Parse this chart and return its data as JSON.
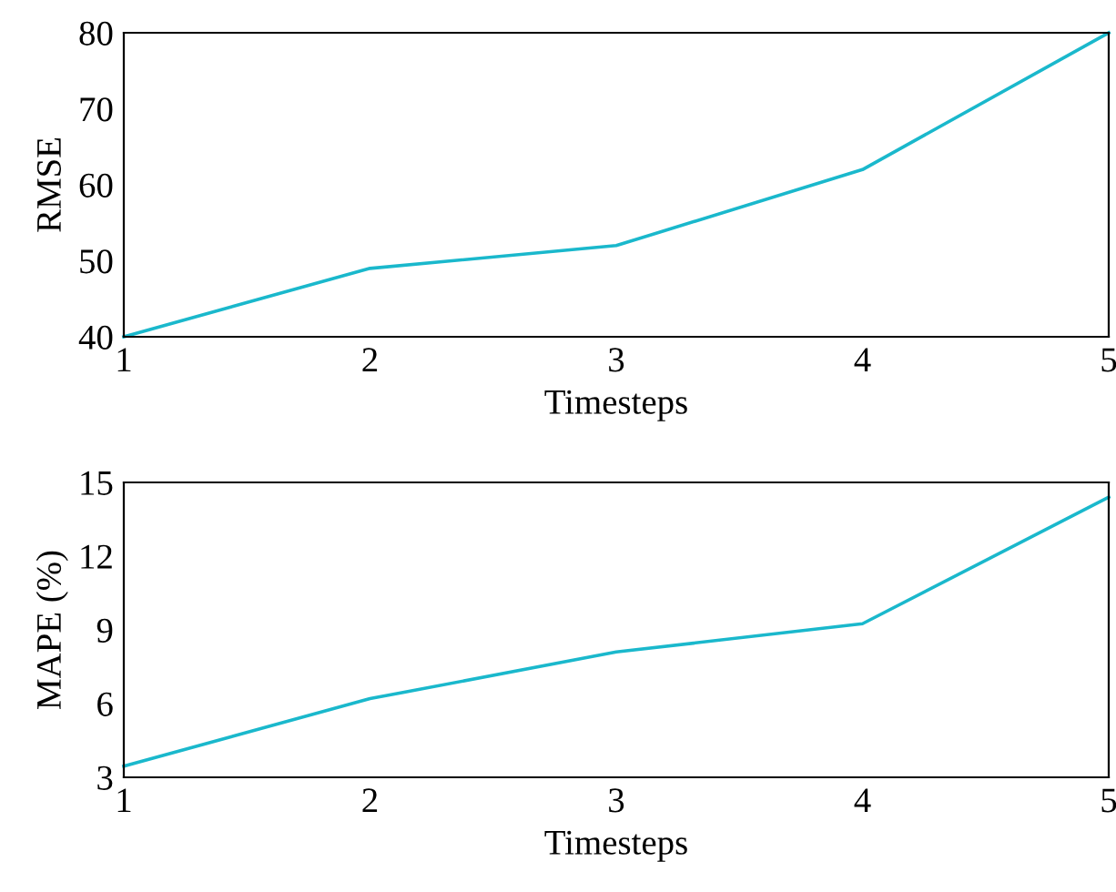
{
  "chart_data": [
    {
      "type": "line",
      "xlabel": "Timesteps",
      "ylabel": "RMSE",
      "x": [
        1,
        2,
        3,
        4,
        5
      ],
      "series": [
        {
          "color": "#1ab8cc",
          "values": [
            40,
            49,
            52,
            62,
            80
          ]
        }
      ],
      "xlim": [
        1,
        5
      ],
      "xticks": [
        1,
        2,
        3,
        4,
        5
      ],
      "ylim": [
        40,
        80
      ],
      "yticks": [
        40,
        50,
        60,
        70,
        80
      ],
      "grid": false,
      "legend": false
    },
    {
      "type": "line",
      "xlabel": "Timesteps",
      "ylabel": "MAPE (%)",
      "x": [
        1,
        2,
        3,
        4,
        5
      ],
      "series": [
        {
          "color": "#1ab8cc",
          "values": [
            3.45,
            6.2,
            8.1,
            9.25,
            14.4
          ]
        }
      ],
      "xlim": [
        1,
        5
      ],
      "xticks": [
        1,
        2,
        3,
        4,
        5
      ],
      "ylim": [
        3,
        15
      ],
      "yticks": [
        3,
        6,
        9,
        12,
        15
      ],
      "grid": false,
      "legend": false
    }
  ]
}
